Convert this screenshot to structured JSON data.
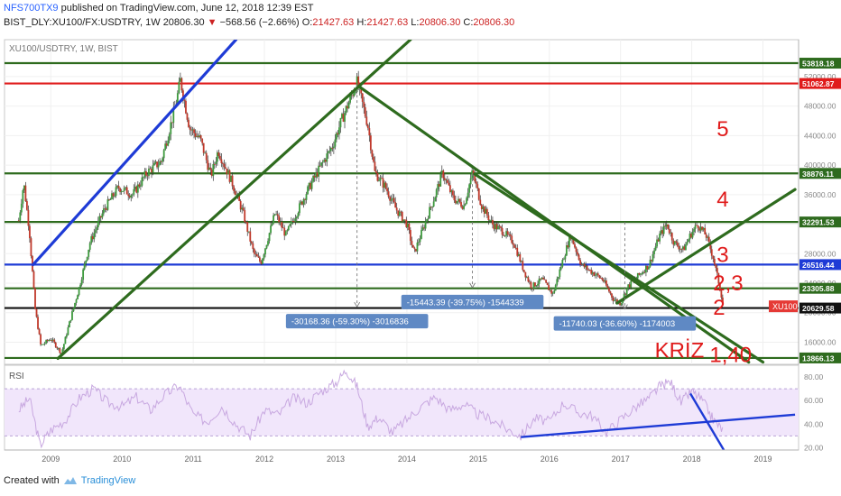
{
  "header": {
    "user": "NFS700TX9",
    "published_text": "published on TradingView.com, June 12, 2018 12:39 EST",
    "symbol": "BIST_DLY:XU100/FX:USDTRY, 1W",
    "last": "20806.30",
    "change": "−568.56 (−2.66%)",
    "o_label": "O:",
    "o_val": "21427.63",
    "h_label": "H:",
    "h_val": "21427.63",
    "l_label": "L:",
    "l_val": "20806.30",
    "c_label": "C:",
    "c_val": "20806.30"
  },
  "footer": {
    "created_with": "Created with",
    "brand": "TradingView"
  },
  "chart_data": {
    "type": "candlestick",
    "title": "XU100/USDTRY, 1W, BIST",
    "xlim": [
      2008.35,
      2019.5
    ],
    "ylim": [
      13000,
      57000
    ],
    "x_ticks": [
      2009,
      2010,
      2011,
      2012,
      2013,
      2014,
      2015,
      2016,
      2017,
      2018,
      2019
    ],
    "y_ticks": [
      16000,
      20000,
      24000,
      28000,
      32000,
      36000,
      40000,
      44000,
      48000,
      52000
    ],
    "price_path": [
      [
        2008.55,
        32500
      ],
      [
        2008.62,
        37600
      ],
      [
        2008.7,
        31000
      ],
      [
        2008.78,
        20500
      ],
      [
        2008.86,
        15500
      ],
      [
        2009.0,
        16500
      ],
      [
        2009.15,
        14500
      ],
      [
        2009.25,
        18200
      ],
      [
        2009.4,
        23500
      ],
      [
        2009.55,
        29500
      ],
      [
        2009.75,
        34000
      ],
      [
        2009.95,
        37000
      ],
      [
        2010.15,
        36000
      ],
      [
        2010.35,
        39000
      ],
      [
        2010.55,
        40500
      ],
      [
        2010.75,
        48000
      ],
      [
        2010.82,
        51500
      ],
      [
        2010.95,
        45000
      ],
      [
        2011.1,
        43500
      ],
      [
        2011.25,
        38500
      ],
      [
        2011.35,
        42000
      ],
      [
        2011.55,
        37500
      ],
      [
        2011.7,
        33500
      ],
      [
        2011.85,
        28000
      ],
      [
        2011.95,
        26800
      ],
      [
        2012.15,
        33500
      ],
      [
        2012.3,
        30500
      ],
      [
        2012.45,
        33500
      ],
      [
        2012.6,
        36500
      ],
      [
        2012.8,
        40000
      ],
      [
        2012.95,
        42500
      ],
      [
        2013.1,
        46500
      ],
      [
        2013.3,
        51200
      ],
      [
        2013.45,
        45500
      ],
      [
        2013.55,
        39000
      ],
      [
        2013.7,
        37000
      ],
      [
        2013.85,
        34000
      ],
      [
        2014.0,
        32000
      ],
      [
        2014.1,
        28000
      ],
      [
        2014.25,
        32000
      ],
      [
        2014.4,
        36000
      ],
      [
        2014.5,
        39000
      ],
      [
        2014.65,
        35500
      ],
      [
        2014.8,
        34500
      ],
      [
        2014.92,
        39000
      ],
      [
        2015.05,
        34500
      ],
      [
        2015.2,
        32000
      ],
      [
        2015.35,
        31000
      ],
      [
        2015.5,
        29500
      ],
      [
        2015.65,
        25500
      ],
      [
        2015.75,
        23500
      ],
      [
        2015.9,
        24500
      ],
      [
        2016.05,
        22500
      ],
      [
        2016.2,
        27500
      ],
      [
        2016.3,
        30500
      ],
      [
        2016.45,
        26500
      ],
      [
        2016.6,
        25500
      ],
      [
        2016.75,
        24500
      ],
      [
        2016.9,
        21800
      ],
      [
        2017.0,
        21300
      ],
      [
        2017.1,
        23500
      ],
      [
        2017.25,
        25000
      ],
      [
        2017.4,
        26500
      ],
      [
        2017.55,
        30500
      ],
      [
        2017.65,
        32000
      ],
      [
        2017.75,
        29500
      ],
      [
        2017.88,
        28500
      ],
      [
        2017.98,
        30500
      ],
      [
        2018.08,
        32000
      ],
      [
        2018.2,
        30500
      ],
      [
        2018.3,
        27500
      ],
      [
        2018.38,
        24000
      ],
      [
        2018.45,
        20806
      ]
    ],
    "horizontal_lines": [
      {
        "value": 53818.18,
        "label": "53818.18",
        "color": "#2e6b1e"
      },
      {
        "value": 51062.87,
        "label": "51062.87",
        "color": "#e01b1b"
      },
      {
        "value": 38876.11,
        "label": "38876.11",
        "color": "#2e6b1e"
      },
      {
        "value": 32291.53,
        "label": "32291.53",
        "color": "#2e6b1e"
      },
      {
        "value": 26516.44,
        "label": "26516.44",
        "color": "#1e3bd6"
      },
      {
        "value": 23305.88,
        "label": "23305.88",
        "color": "#2e6b1e"
      },
      {
        "value": 20629.58,
        "label": "20629.58",
        "color": "#111111"
      },
      {
        "value": 13866.13,
        "label": "13866.13",
        "color": "#2e6b1e"
      }
    ],
    "trend_lines": [
      {
        "x1": 2008.75,
        "y1": 26500,
        "x2": 2011.6,
        "y2": 57000,
        "color": "#1e3bd6"
      },
      {
        "x1": 2009.1,
        "y1": 13800,
        "x2": 2014.05,
        "y2": 57000,
        "color": "#2e6b1e"
      },
      {
        "x1": 2013.35,
        "y1": 50500,
        "x2": 2018.8,
        "y2": 13300,
        "color": "#2e6b1e"
      },
      {
        "x1": 2014.95,
        "y1": 38800,
        "x2": 2019.0,
        "y2": 13300,
        "color": "#2e6b1e"
      },
      {
        "x1": 2016.95,
        "y1": 21300,
        "x2": 2019.45,
        "y2": 36700,
        "color": "#2e6b1e"
      }
    ],
    "measures": [
      {
        "x": 2013.3,
        "y_top": 51000,
        "y_bottom": 20800,
        "label": "-30168.36 (-59.30%) -3016836"
      },
      {
        "x": 2014.92,
        "y_top": 38900,
        "y_bottom": 23400,
        "label": "-15443.39 (-39.75%) -1544339"
      },
      {
        "x": 2017.06,
        "y_top": 32300,
        "y_bottom": 20500,
        "label": "-11740.03 (-36.60%) -1174003"
      }
    ],
    "annotations": [
      {
        "text": "5",
        "x": 2018.35,
        "y": 45000
      },
      {
        "text": "4",
        "x": 2018.35,
        "y": 35500
      },
      {
        "text": "3",
        "x": 2018.35,
        "y": 28000
      },
      {
        "text": "2,3",
        "x": 2018.3,
        "y": 24100
      },
      {
        "text": "2",
        "x": 2018.3,
        "y": 20800
      },
      {
        "text": "1,40",
        "x": 2018.25,
        "y": 14400
      },
      {
        "text": "KRİZ",
        "x": 2017.48,
        "y": 15000
      }
    ],
    "last_price_tag": "XU100",
    "rsi": {
      "label": "RSI",
      "ylim": [
        18,
        90
      ],
      "ticks": [
        20,
        40,
        60,
        80
      ],
      "band": [
        30,
        70
      ],
      "values": [
        [
          2008.55,
          52
        ],
        [
          2008.7,
          62
        ],
        [
          2008.85,
          22
        ],
        [
          2009.0,
          35
        ],
        [
          2009.2,
          43
        ],
        [
          2009.4,
          62
        ],
        [
          2009.6,
          70
        ],
        [
          2009.8,
          58
        ],
        [
          2010.0,
          55
        ],
        [
          2010.2,
          63
        ],
        [
          2010.4,
          52
        ],
        [
          2010.6,
          65
        ],
        [
          2010.8,
          73
        ],
        [
          2011.0,
          48
        ],
        [
          2011.2,
          42
        ],
        [
          2011.4,
          55
        ],
        [
          2011.6,
          40
        ],
        [
          2011.8,
          30
        ],
        [
          2012.0,
          52
        ],
        [
          2012.2,
          48
        ],
        [
          2012.4,
          62
        ],
        [
          2012.6,
          58
        ],
        [
          2012.8,
          68
        ],
        [
          2013.0,
          75
        ],
        [
          2013.15,
          86
        ],
        [
          2013.3,
          72
        ],
        [
          2013.45,
          38
        ],
        [
          2013.6,
          46
        ],
        [
          2013.8,
          33
        ],
        [
          2014.0,
          44
        ],
        [
          2014.2,
          55
        ],
        [
          2014.4,
          63
        ],
        [
          2014.6,
          52
        ],
        [
          2014.8,
          57
        ],
        [
          2015.0,
          48
        ],
        [
          2015.2,
          44
        ],
        [
          2015.4,
          36
        ],
        [
          2015.6,
          30
        ],
        [
          2015.8,
          45
        ],
        [
          2016.0,
          42
        ],
        [
          2016.2,
          58
        ],
        [
          2016.4,
          50
        ],
        [
          2016.6,
          47
        ],
        [
          2016.8,
          33
        ],
        [
          2017.0,
          44
        ],
        [
          2017.2,
          54
        ],
        [
          2017.4,
          62
        ],
        [
          2017.55,
          72
        ],
        [
          2017.7,
          76
        ],
        [
          2017.85,
          58
        ],
        [
          2018.0,
          68
        ],
        [
          2018.15,
          60
        ],
        [
          2018.3,
          44
        ],
        [
          2018.45,
          34
        ]
      ],
      "trend_lines": [
        {
          "x1": 2015.6,
          "y1": 29,
          "x2": 2019.45,
          "y2": 48
        },
        {
          "x1": 2017.98,
          "y1": 66,
          "x2": 2018.45,
          "y2": 18
        }
      ]
    }
  }
}
